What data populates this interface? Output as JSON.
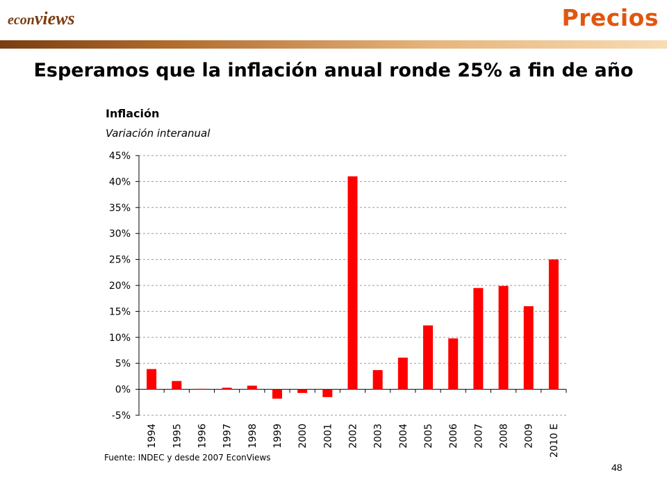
{
  "header": {
    "logo_part1": "econ",
    "logo_part2": "views",
    "section_title": "Precios"
  },
  "headline": "Esperamos que la inflación anual ronde 25% a fin de año",
  "footer": {
    "source": "Fuente: INDEC y desde 2007 EconViews",
    "page_number": "48"
  },
  "colors": {
    "bar": "#ff0000",
    "section_title": "#e0560e",
    "grid": "#9a9a9a"
  },
  "chart_data": {
    "type": "bar",
    "title": "Inflación",
    "subtitle": "Variación interanual",
    "categories": [
      "1994",
      "1995",
      "1996",
      "1997",
      "1998",
      "1999",
      "2000",
      "2001",
      "2002",
      "2003",
      "2004",
      "2005",
      "2006",
      "2007",
      "2008",
      "2009",
      "2010 E"
    ],
    "values": [
      3.9,
      1.6,
      0.1,
      0.3,
      0.7,
      -1.8,
      -0.7,
      -1.5,
      41.0,
      3.7,
      6.1,
      12.3,
      9.8,
      19.5,
      19.9,
      16.0,
      25.0
    ],
    "ylim": [
      -5,
      45
    ],
    "yticks": [
      -5,
      0,
      5,
      10,
      15,
      20,
      25,
      30,
      35,
      40,
      45
    ],
    "ytick_labels": [
      "-5%",
      "0%",
      "5%",
      "10%",
      "15%",
      "20%",
      "25%",
      "30%",
      "35%",
      "40%",
      "45%"
    ],
    "grid": true,
    "legend": "none"
  }
}
